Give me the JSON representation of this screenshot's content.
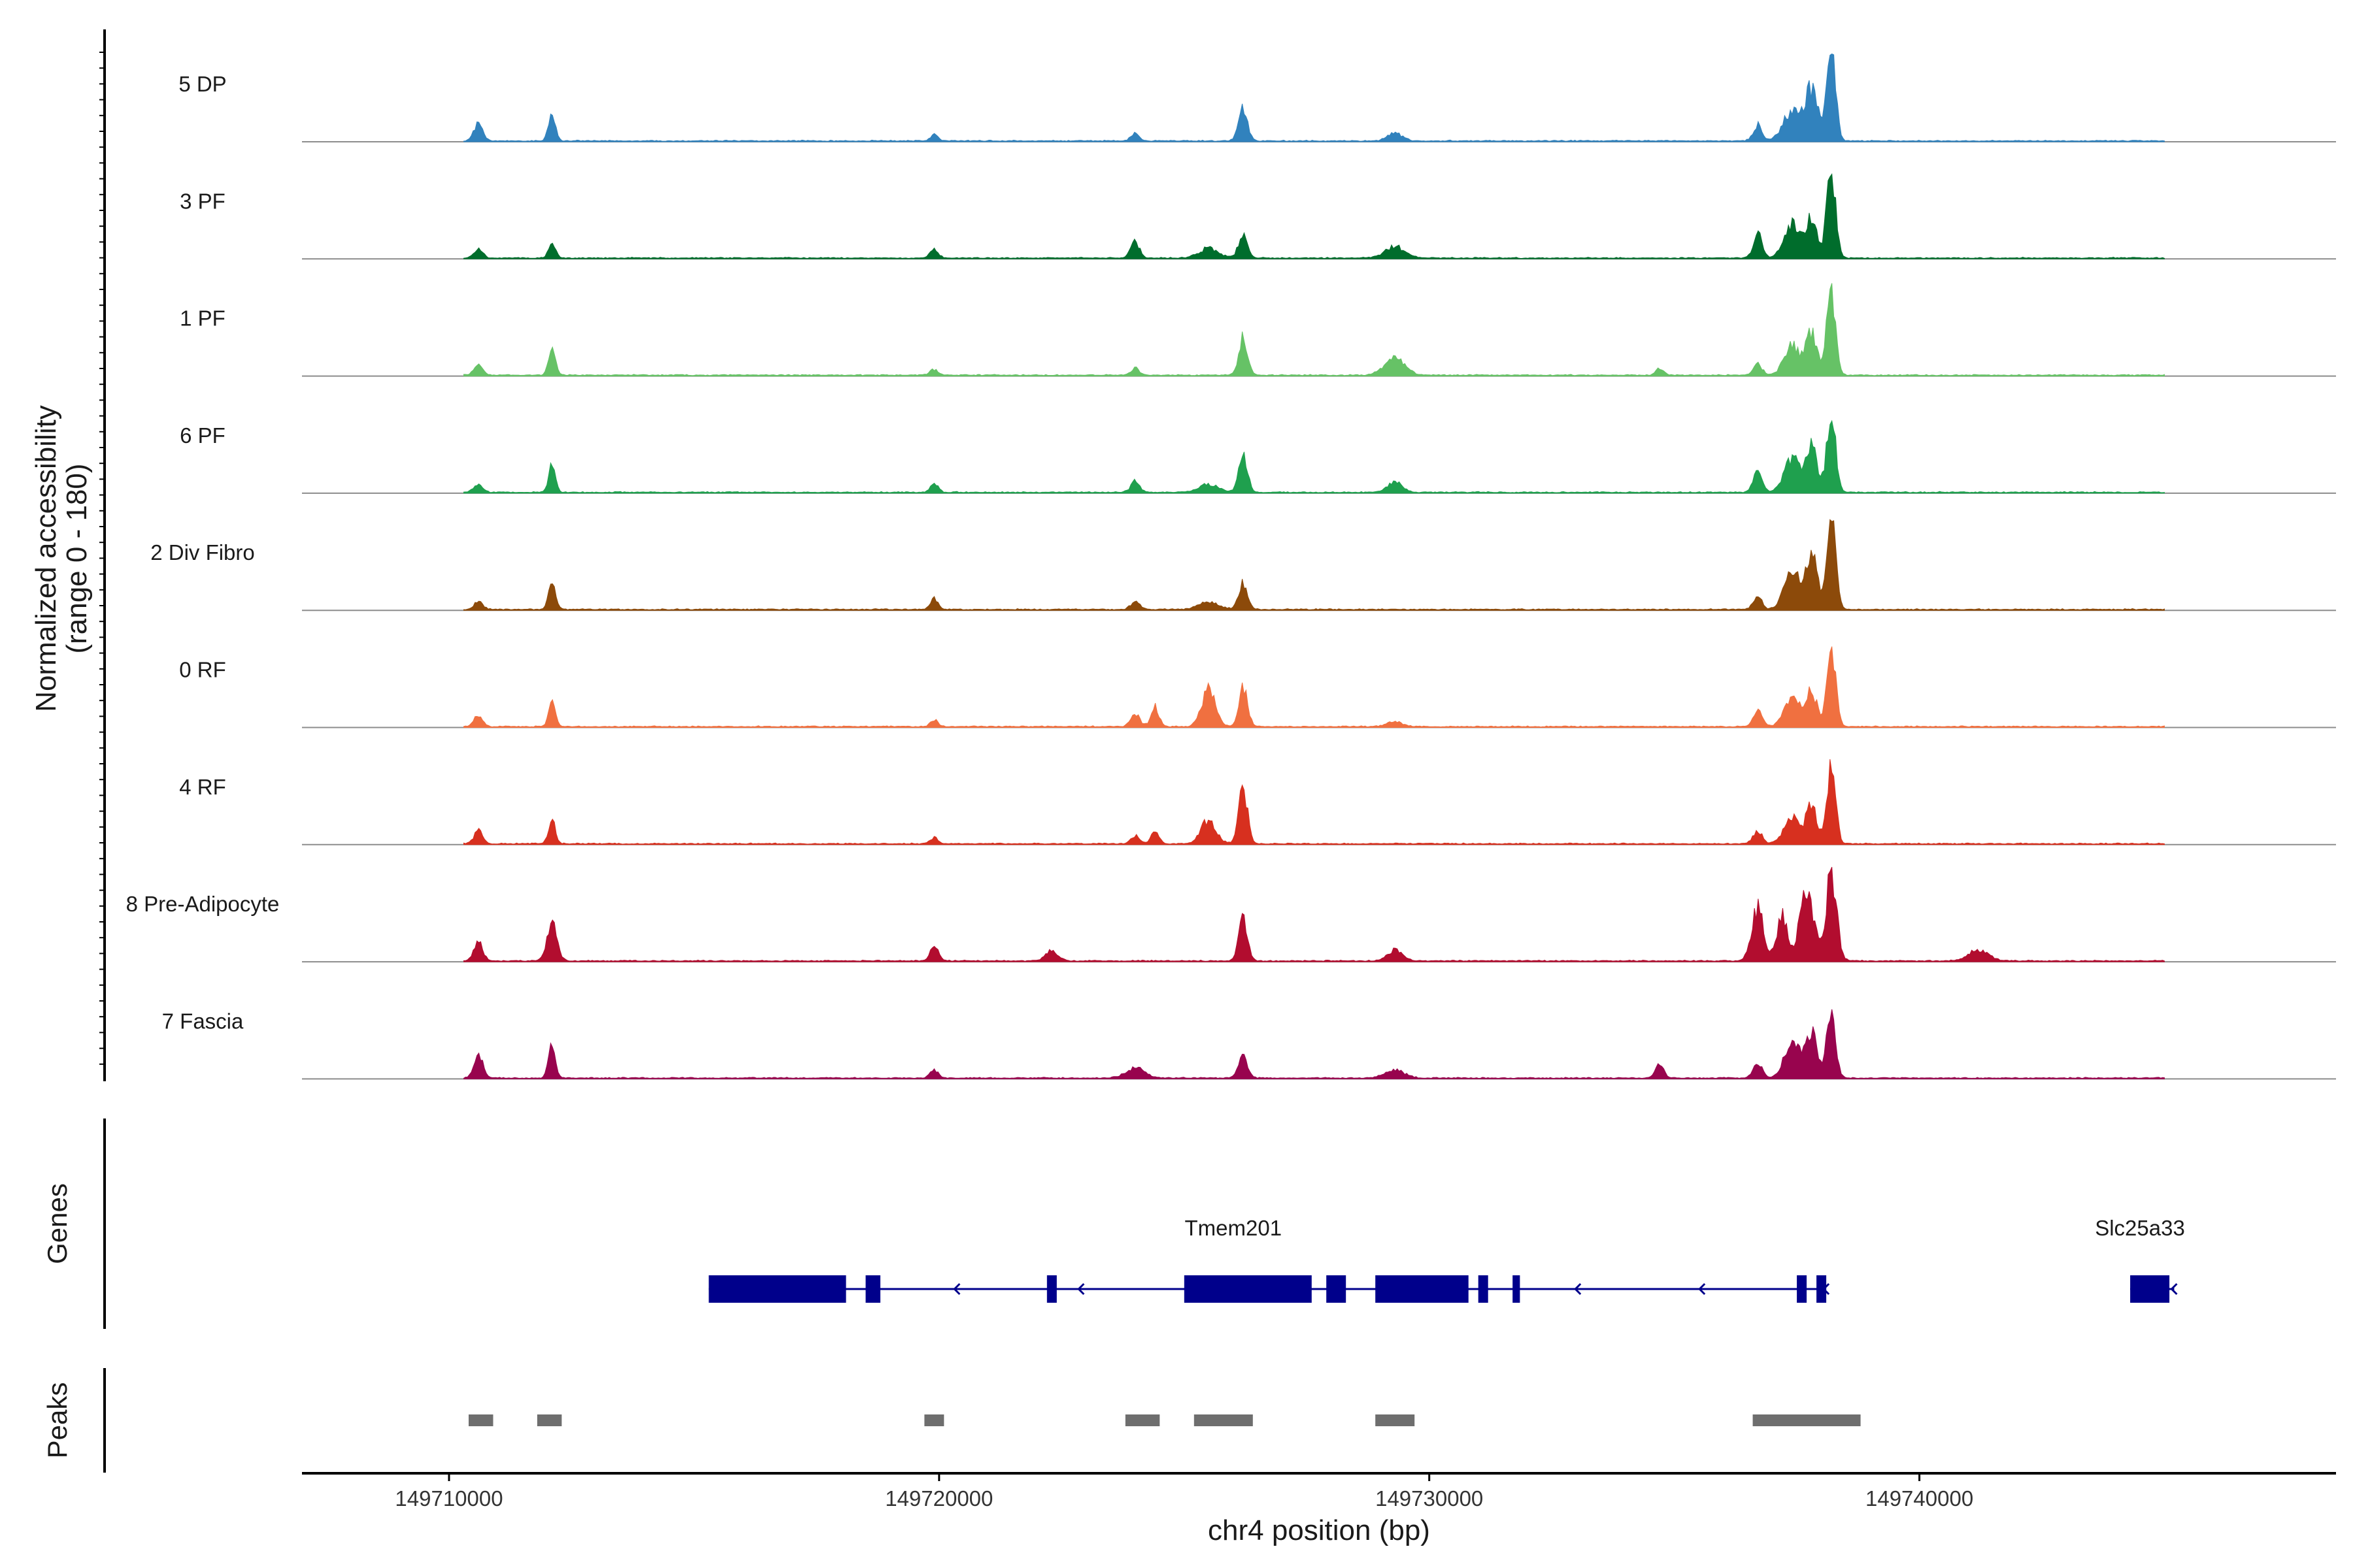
{
  "chart_data": {
    "type": "area",
    "title": "",
    "region": "chr4",
    "xlabel": "chr4 position (bp)",
    "ylabel_line1": "Normalized accessibility",
    "ylabel_line2": "(range 0 - 180)",
    "ylim": [
      0,
      180
    ],
    "xlim": [
      149707000,
      149748500
    ],
    "x_ticks": [
      149710000,
      149720000,
      149730000,
      149740000
    ],
    "x_tick_labels": [
      "149710000",
      "149720000",
      "149730000",
      "149740000"
    ],
    "genes_title": "Genes",
    "peaks_title": "Peaks",
    "coverage_start": 149710300,
    "coverage_end": 149745000,
    "series": [
      {
        "name": "5 DP",
        "color": "#3182bd",
        "peaks": [
          [
            149710600,
            35,
            90
          ],
          [
            149712100,
            55,
            70
          ],
          [
            149719900,
            12,
            80
          ],
          [
            149724000,
            15,
            80
          ],
          [
            149726200,
            65,
            90
          ],
          [
            149729300,
            15,
            150
          ],
          [
            149736700,
            30,
            90
          ],
          [
            149737400,
            55,
            180
          ],
          [
            149737800,
            95,
            130
          ],
          [
            149738200,
            170,
            90
          ]
        ]
      },
      {
        "name": "3 PF",
        "color": "#006d2c",
        "peaks": [
          [
            149710600,
            18,
            90
          ],
          [
            149712100,
            28,
            70
          ],
          [
            149719900,
            18,
            80
          ],
          [
            149724000,
            30,
            90
          ],
          [
            149725500,
            18,
            200
          ],
          [
            149726200,
            45,
            90
          ],
          [
            149729300,
            22,
            200
          ],
          [
            149736700,
            45,
            90
          ],
          [
            149737400,
            65,
            160
          ],
          [
            149737800,
            75,
            110
          ],
          [
            149738200,
            165,
            90
          ]
        ]
      },
      {
        "name": "1 PF",
        "color": "#66c266",
        "peaks": [
          [
            149710600,
            20,
            90
          ],
          [
            149712100,
            50,
            70
          ],
          [
            149719900,
            10,
            80
          ],
          [
            149724000,
            15,
            80
          ],
          [
            149726200,
            70,
            90
          ],
          [
            149729300,
            35,
            200
          ],
          [
            149734700,
            12,
            80
          ],
          [
            149736700,
            20,
            90
          ],
          [
            149737400,
            55,
            160
          ],
          [
            149737800,
            80,
            110
          ],
          [
            149738200,
            160,
            90
          ]
        ]
      },
      {
        "name": "6 PF",
        "color": "#1fa04e",
        "peaks": [
          [
            149710600,
            15,
            90
          ],
          [
            149712100,
            50,
            70
          ],
          [
            149719900,
            15,
            80
          ],
          [
            149724000,
            20,
            90
          ],
          [
            149725500,
            15,
            200
          ],
          [
            149726200,
            70,
            90
          ],
          [
            149729300,
            20,
            150
          ],
          [
            149736700,
            45,
            90
          ],
          [
            149737400,
            65,
            160
          ],
          [
            149737800,
            85,
            110
          ],
          [
            149738200,
            155,
            90
          ]
        ]
      },
      {
        "name": "2 Div Fibro",
        "color": "#8c4a0a",
        "peaks": [
          [
            149710600,
            15,
            90
          ],
          [
            149712100,
            50,
            70
          ],
          [
            149719900,
            20,
            80
          ],
          [
            149724000,
            15,
            90
          ],
          [
            149725500,
            15,
            200
          ],
          [
            149726200,
            50,
            90
          ],
          [
            149736700,
            25,
            90
          ],
          [
            149737400,
            70,
            160
          ],
          [
            149737800,
            105,
            120
          ],
          [
            149738200,
            170,
            90
          ]
        ]
      },
      {
        "name": "0 RF",
        "color": "#f07040",
        "peaks": [
          [
            149710600,
            20,
            90
          ],
          [
            149712100,
            45,
            70
          ],
          [
            149719900,
            12,
            80
          ],
          [
            149724000,
            25,
            90
          ],
          [
            149724400,
            40,
            80
          ],
          [
            149725500,
            70,
            140
          ],
          [
            149726200,
            75,
            90
          ],
          [
            149729300,
            10,
            150
          ],
          [
            149736700,
            30,
            90
          ],
          [
            149737400,
            55,
            160
          ],
          [
            149737800,
            65,
            110
          ],
          [
            149738200,
            150,
            90
          ]
        ]
      },
      {
        "name": "4 RF",
        "color": "#d7301f",
        "peaks": [
          [
            149710600,
            25,
            90
          ],
          [
            149712100,
            45,
            70
          ],
          [
            149719900,
            12,
            80
          ],
          [
            149724000,
            15,
            90
          ],
          [
            149724400,
            25,
            80
          ],
          [
            149725500,
            45,
            150
          ],
          [
            149726200,
            105,
            90
          ],
          [
            149736700,
            25,
            90
          ],
          [
            149737400,
            50,
            160
          ],
          [
            149737800,
            70,
            110
          ],
          [
            149738200,
            140,
            90
          ]
        ]
      },
      {
        "name": "8 Pre-Adipocyte",
        "color": "#b20d2f",
        "peaks": [
          [
            149710600,
            35,
            90
          ],
          [
            149712100,
            70,
            100
          ],
          [
            149719900,
            30,
            80
          ],
          [
            149722300,
            20,
            120
          ],
          [
            149726200,
            85,
            90
          ],
          [
            149729300,
            20,
            150
          ],
          [
            149736700,
            100,
            120
          ],
          [
            149737200,
            85,
            110
          ],
          [
            149737700,
            140,
            140
          ],
          [
            149738200,
            160,
            110
          ],
          [
            149741200,
            20,
            200
          ]
        ]
      },
      {
        "name": "7 Fascia",
        "color": "#98044e",
        "peaks": [
          [
            149710600,
            45,
            90
          ],
          [
            149712100,
            60,
            70
          ],
          [
            149719900,
            15,
            80
          ],
          [
            149724000,
            18,
            200
          ],
          [
            149726200,
            45,
            90
          ],
          [
            149729300,
            15,
            200
          ],
          [
            149734700,
            25,
            90
          ],
          [
            149736700,
            30,
            90
          ],
          [
            149737400,
            70,
            160
          ],
          [
            149737800,
            90,
            110
          ],
          [
            149738200,
            125,
            90
          ]
        ]
      }
    ],
    "genes": [
      {
        "name": "Tmem201",
        "strand": "-",
        "label_position": 149726000,
        "start": 149715300,
        "end": 149738100,
        "exons": [
          [
            149715300,
            149718100
          ],
          [
            149718500,
            149718800
          ],
          [
            149722200,
            149722400
          ],
          [
            149725000,
            149727600
          ],
          [
            149727900,
            149728300
          ],
          [
            149728900,
            149730800
          ],
          [
            149731000,
            149731200
          ],
          [
            149731700,
            149731850
          ],
          [
            149737500,
            149737700
          ],
          [
            149737900,
            149738100
          ]
        ]
      },
      {
        "name": "Slc25a33",
        "strand": "-",
        "label_position": 149744500,
        "start": 149744300,
        "end": 149745200,
        "exons": [
          [
            149744300,
            149745100
          ]
        ]
      }
    ],
    "peaks": [
      [
        149710400,
        149710900
      ],
      [
        149711800,
        149712300
      ],
      [
        149719700,
        149720100
      ],
      [
        149723800,
        149724500
      ],
      [
        149725200,
        149726400
      ],
      [
        149728900,
        149729700
      ],
      [
        149736600,
        149738800
      ]
    ]
  }
}
